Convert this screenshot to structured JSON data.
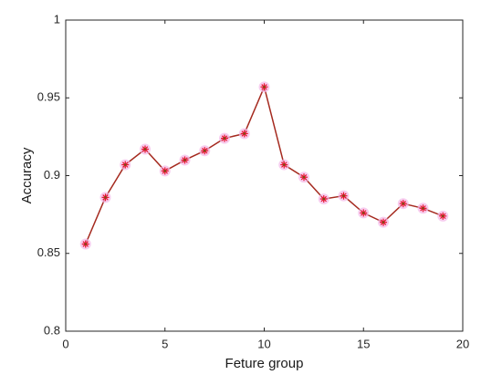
{
  "chart_data": {
    "type": "line",
    "x_label": "Feture group",
    "y_label": "Accuracy",
    "x": [
      1,
      2,
      3,
      4,
      5,
      6,
      7,
      8,
      9,
      10,
      11,
      12,
      13,
      14,
      15,
      16,
      17,
      18,
      19
    ],
    "series": [
      {
        "color": "#a52a1f",
        "marker_color": "#e8102a",
        "values": [
          0.856,
          0.886,
          0.907,
          0.917,
          0.903,
          0.91,
          0.916,
          0.924,
          0.927,
          0.957,
          0.907,
          0.899,
          0.885,
          0.887,
          0.876,
          0.87,
          0.882,
          0.879,
          0.874
        ]
      }
    ],
    "xlim": [
      0,
      20
    ],
    "xticks": [
      0,
      5,
      10,
      15,
      20
    ],
    "ylim": [
      0.8,
      1
    ],
    "yticks": [
      0.8,
      0.85,
      0.9,
      0.95,
      1
    ],
    "grid": false
  }
}
